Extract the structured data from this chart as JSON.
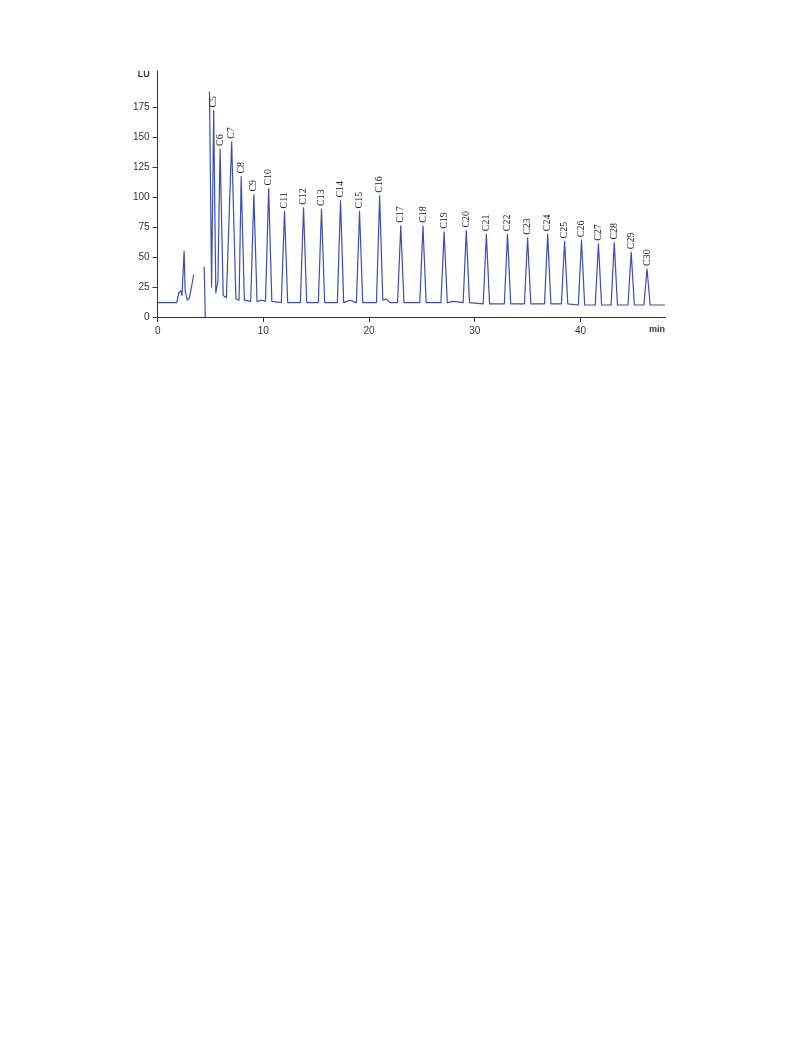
{
  "chart_data": {
    "type": "line",
    "xlabel": "min",
    "ylabel": "LU",
    "xlim": [
      0,
      48
    ],
    "xticks": [
      0,
      10,
      20,
      30,
      40
    ],
    "ylim": [
      0,
      205
    ],
    "yticks": [
      0,
      25,
      50,
      75,
      100,
      125,
      150,
      175
    ],
    "marker": "none",
    "legend": false,
    "series": [
      {
        "color": "#3a4fb0",
        "x": [
          0,
          1.8,
          2.0,
          2.2,
          2.3,
          2.5,
          2.6,
          2.8,
          3.0,
          3.2,
          3.4,
          3.5,
          4.4,
          4.5,
          4.7,
          4.9,
          5.1,
          5.3,
          5.5,
          5.7,
          5.9,
          6.2,
          6.5,
          7.0,
          7.4,
          7.7,
          7.9,
          8.2,
          8.8,
          9.1,
          9.4,
          9.9,
          10.2,
          10.5,
          10.8,
          11.7,
          12.0,
          12.3,
          13.5,
          13.8,
          14.1,
          15.2,
          15.5,
          15.8,
          17.0,
          17.3,
          17.6,
          18.2,
          18.8,
          19.1,
          19.4,
          20.7,
          21.0,
          21.3,
          21.6,
          22.0,
          22.7,
          23.0,
          23.3,
          24.8,
          25.1,
          25.4,
          26.8,
          27.1,
          27.4,
          28.0,
          28.9,
          29.2,
          29.5,
          30.8,
          31.1,
          31.4,
          32.8,
          33.1,
          33.4,
          34.7,
          35.0,
          35.3,
          36.6,
          36.9,
          37.2,
          38.2,
          38.5,
          38.8,
          39.8,
          40.1,
          40.4,
          41.4,
          41.7,
          42.0,
          42.9,
          43.2,
          43.5,
          44.5,
          44.8,
          45.1,
          46.0,
          46.3,
          46.6,
          48
        ],
        "values": [
          12,
          12,
          20,
          22,
          18,
          55,
          22,
          14,
          16,
          25,
          35,
          null,
          42,
          0,
          null,
          188,
          25,
          172,
          20,
          30,
          140,
          18,
          16,
          146,
          15,
          14,
          117,
          14,
          13,
          102,
          13,
          14,
          13,
          107,
          13,
          12,
          88,
          12,
          12,
          91,
          12,
          12,
          90,
          12,
          12,
          97,
          12,
          14,
          12,
          88,
          12,
          12,
          101,
          14,
          15,
          12,
          12,
          76,
          12,
          12,
          76,
          12,
          12,
          71,
          12,
          13,
          12,
          72,
          12,
          11,
          69,
          11,
          11,
          69,
          11,
          11,
          66,
          11,
          11,
          69,
          11,
          11,
          63,
          11,
          10,
          64,
          10,
          10,
          61,
          10,
          10,
          62,
          10,
          10,
          54,
          10,
          10,
          40,
          10,
          10
        ]
      }
    ],
    "annotations": [
      {
        "text": "C5",
        "x": 5.3,
        "y": 172
      },
      {
        "text": "C6",
        "x": 5.9,
        "y": 140
      },
      {
        "text": "C7",
        "x": 7.0,
        "y": 146
      },
      {
        "text": "C8",
        "x": 7.9,
        "y": 117
      },
      {
        "text": "C9",
        "x": 9.1,
        "y": 102
      },
      {
        "text": "C10",
        "x": 10.5,
        "y": 107
      },
      {
        "text": "C11",
        "x": 12.0,
        "y": 88
      },
      {
        "text": "C12",
        "x": 13.8,
        "y": 91
      },
      {
        "text": "C13",
        "x": 15.5,
        "y": 90
      },
      {
        "text": "C14",
        "x": 17.3,
        "y": 97
      },
      {
        "text": "C15",
        "x": 19.1,
        "y": 88
      },
      {
        "text": "C16",
        "x": 21.0,
        "y": 101
      },
      {
        "text": "C17",
        "x": 23.0,
        "y": 76
      },
      {
        "text": "C18",
        "x": 25.1,
        "y": 76
      },
      {
        "text": "C19",
        "x": 27.1,
        "y": 71
      },
      {
        "text": "C20",
        "x": 29.2,
        "y": 72
      },
      {
        "text": "C21",
        "x": 31.1,
        "y": 69
      },
      {
        "text": "C22",
        "x": 33.1,
        "y": 69
      },
      {
        "text": "C23",
        "x": 35.0,
        "y": 66
      },
      {
        "text": "C24",
        "x": 36.9,
        "y": 69
      },
      {
        "text": "C25",
        "x": 38.5,
        "y": 63
      },
      {
        "text": "C26",
        "x": 40.1,
        "y": 64
      },
      {
        "text": "C27",
        "x": 41.7,
        "y": 61
      },
      {
        "text": "C28",
        "x": 43.2,
        "y": 62
      },
      {
        "text": "C29",
        "x": 44.8,
        "y": 54
      },
      {
        "text": "C30",
        "x": 46.3,
        "y": 40
      }
    ]
  }
}
